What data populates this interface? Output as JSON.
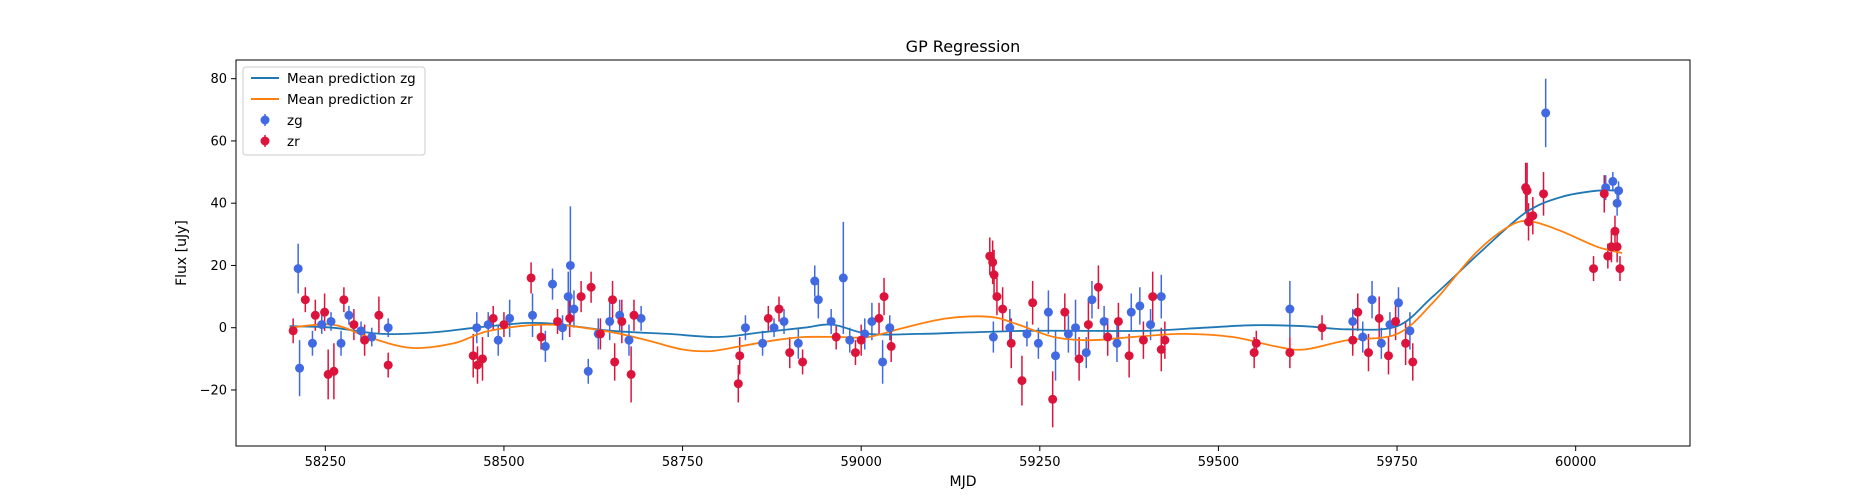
{
  "chart_data": {
    "type": "scatter",
    "title": "GP Regression",
    "xlabel": "MJD",
    "ylabel": "Flux [uJy]",
    "xlim": [
      58125,
      60160
    ],
    "ylim": [
      -38,
      86
    ],
    "x_ticks": [
      58250,
      58500,
      58750,
      59000,
      59250,
      59500,
      59750,
      60000
    ],
    "y_ticks": [
      -20,
      0,
      20,
      40,
      60,
      80
    ],
    "grid": false,
    "legend_position": "top-left",
    "lines": [
      {
        "name": "Mean prediction zg",
        "color": "#1f77b4",
        "x": [
          58200,
          58260,
          58330,
          58400,
          58460,
          58530,
          58580,
          58650,
          58730,
          58800,
          58860,
          58920,
          58960,
          59010,
          59080,
          59150,
          59230,
          59300,
          59400,
          59480,
          59550,
          59620,
          59680,
          59750,
          59800,
          59870,
          59930,
          59980,
          60030,
          60065
        ],
        "y": [
          0.5,
          0,
          -2,
          -1.5,
          0,
          1.5,
          1,
          -1,
          -2,
          -3,
          -1.5,
          0,
          1,
          -2,
          -2,
          -1.5,
          -1,
          -1,
          -1,
          0,
          0.8,
          0.5,
          -0.5,
          0.5,
          10,
          25,
          37,
          42,
          44,
          44
        ]
      },
      {
        "name": "Mean prediction zr",
        "color": "#ff7f0e",
        "x": [
          58200,
          58260,
          58310,
          58370,
          58430,
          58480,
          58560,
          58640,
          58700,
          58750,
          58790,
          58830,
          58880,
          58920,
          58970,
          59010,
          59060,
          59120,
          59180,
          59220,
          59270,
          59320,
          59380,
          59450,
          59520,
          59580,
          59620,
          59680,
          59750,
          59800,
          59860,
          59910,
          59940,
          59980,
          60030,
          60065
        ],
        "y": [
          0,
          1,
          -3,
          -6.5,
          -5,
          -1,
          1,
          -1,
          -4,
          -7,
          -7.5,
          -6,
          -4,
          -3,
          -3,
          -3,
          0,
          3,
          3.5,
          1,
          -3,
          -4,
          -3,
          -2,
          -3,
          -6,
          -7,
          -4,
          -2,
          8,
          24,
          33,
          34,
          31,
          26,
          24
        ]
      }
    ],
    "series": [
      {
        "name": "zg",
        "color": "#4169e1",
        "points": [
          [
            58212,
            19,
            8
          ],
          [
            58214,
            -13,
            9
          ],
          [
            58232,
            -5,
            4
          ],
          [
            58245,
            1,
            3
          ],
          [
            58258,
            2,
            3
          ],
          [
            58272,
            -5,
            4
          ],
          [
            58283,
            4,
            3
          ],
          [
            58300,
            -1,
            3
          ],
          [
            58315,
            -3,
            3
          ],
          [
            58338,
            0,
            3
          ],
          [
            58462,
            0,
            5
          ],
          [
            58478,
            1,
            4
          ],
          [
            58492,
            -4,
            5
          ],
          [
            58508,
            3,
            6
          ],
          [
            58540,
            4,
            7
          ],
          [
            58558,
            -6,
            5
          ],
          [
            58568,
            14,
            5
          ],
          [
            58582,
            0,
            4
          ],
          [
            58590,
            10,
            8
          ],
          [
            58593,
            20,
            19
          ],
          [
            58598,
            6,
            6
          ],
          [
            58618,
            -14,
            4
          ],
          [
            58632,
            -2,
            5
          ],
          [
            58648,
            2,
            6
          ],
          [
            58662,
            4,
            5
          ],
          [
            58675,
            -4,
            5
          ],
          [
            58692,
            3,
            4
          ],
          [
            58838,
            0,
            4
          ],
          [
            58862,
            -5,
            4
          ],
          [
            58878,
            0,
            3
          ],
          [
            58892,
            2,
            4
          ],
          [
            58912,
            -5,
            5
          ],
          [
            58935,
            15,
            5
          ],
          [
            58940,
            9,
            6
          ],
          [
            58958,
            2,
            4
          ],
          [
            58975,
            16,
            18
          ],
          [
            58984,
            -4,
            4
          ],
          [
            59005,
            -2,
            5
          ],
          [
            59015,
            2,
            6
          ],
          [
            59030,
            -11,
            7
          ],
          [
            59040,
            0,
            4
          ],
          [
            59185,
            -3,
            5
          ],
          [
            59208,
            0,
            6
          ],
          [
            59232,
            -2,
            4
          ],
          [
            59248,
            -5,
            5
          ],
          [
            59262,
            5,
            7
          ],
          [
            59272,
            -9,
            8
          ],
          [
            59290,
            -2,
            6
          ],
          [
            59300,
            0,
            9
          ],
          [
            59315,
            -8,
            5
          ],
          [
            59323,
            9,
            6
          ],
          [
            59340,
            2,
            5
          ],
          [
            59358,
            -5,
            6
          ],
          [
            59378,
            5,
            6
          ],
          [
            59390,
            7,
            6
          ],
          [
            59405,
            1,
            5
          ],
          [
            59420,
            10,
            7
          ],
          [
            59600,
            6,
            9
          ],
          [
            59688,
            2,
            4
          ],
          [
            59702,
            -3,
            5
          ],
          [
            59715,
            9,
            6
          ],
          [
            59728,
            -5,
            5
          ],
          [
            59740,
            1,
            4
          ],
          [
            59752,
            8,
            5
          ],
          [
            59768,
            -1,
            6
          ],
          [
            59958,
            69,
            11
          ],
          [
            60042,
            45,
            4
          ],
          [
            60052,
            47,
            3
          ],
          [
            60060,
            44,
            3
          ],
          [
            60058,
            40,
            4
          ]
        ]
      },
      {
        "name": "zr",
        "color": "#dc143c",
        "points": [
          [
            58205,
            -1,
            4
          ],
          [
            58222,
            9,
            4
          ],
          [
            58236,
            4,
            5
          ],
          [
            58249,
            5,
            6
          ],
          [
            58254,
            -15,
            8
          ],
          [
            58262,
            -14,
            9
          ],
          [
            58276,
            9,
            4
          ],
          [
            58290,
            1,
            5
          ],
          [
            58305,
            -4,
            5
          ],
          [
            58325,
            4,
            6
          ],
          [
            58338,
            -12,
            4
          ],
          [
            58457,
            -9,
            7
          ],
          [
            58463,
            -12,
            6
          ],
          [
            58470,
            -10,
            7
          ],
          [
            58485,
            3,
            4
          ],
          [
            58500,
            1,
            4
          ],
          [
            58538,
            16,
            5
          ],
          [
            58552,
            -3,
            4
          ],
          [
            58575,
            2,
            4
          ],
          [
            58592,
            3,
            6
          ],
          [
            58608,
            10,
            5
          ],
          [
            58622,
            13,
            5
          ],
          [
            58635,
            -2,
            5
          ],
          [
            58652,
            9,
            6
          ],
          [
            58655,
            -11,
            6
          ],
          [
            58665,
            2,
            7
          ],
          [
            58678,
            -15,
            9
          ],
          [
            58682,
            4,
            5
          ],
          [
            58828,
            -18,
            6
          ],
          [
            58830,
            -9,
            6
          ],
          [
            58870,
            3,
            4
          ],
          [
            58885,
            6,
            4
          ],
          [
            58900,
            -8,
            5
          ],
          [
            58918,
            -11,
            4
          ],
          [
            58965,
            -3,
            4
          ],
          [
            58992,
            -8,
            4
          ],
          [
            59000,
            -4,
            5
          ],
          [
            59025,
            3,
            5
          ],
          [
            59032,
            10,
            6
          ],
          [
            59042,
            -6,
            5
          ],
          [
            59180,
            23,
            6
          ],
          [
            59184,
            21,
            7
          ],
          [
            59186,
            17,
            8
          ],
          [
            59190,
            10,
            6
          ],
          [
            59198,
            6,
            7
          ],
          [
            59210,
            -5,
            8
          ],
          [
            59225,
            -17,
            8
          ],
          [
            59240,
            8,
            7
          ],
          [
            59268,
            -23,
            9
          ],
          [
            59285,
            5,
            6
          ],
          [
            59305,
            -10,
            7
          ],
          [
            59318,
            1,
            8
          ],
          [
            59332,
            13,
            7
          ],
          [
            59345,
            -3,
            6
          ],
          [
            59360,
            2,
            6
          ],
          [
            59375,
            -9,
            7
          ],
          [
            59395,
            -4,
            6
          ],
          [
            59408,
            10,
            8
          ],
          [
            59420,
            -7,
            7
          ],
          [
            59425,
            -4,
            6
          ],
          [
            59550,
            -8,
            5
          ],
          [
            59553,
            -5,
            4
          ],
          [
            59600,
            -8,
            5
          ],
          [
            59645,
            0,
            4
          ],
          [
            59688,
            -4,
            5
          ],
          [
            59695,
            5,
            6
          ],
          [
            59710,
            -8,
            6
          ],
          [
            59725,
            3,
            7
          ],
          [
            59738,
            -9,
            6
          ],
          [
            59748,
            2,
            6
          ],
          [
            59762,
            -5,
            7
          ],
          [
            59772,
            -11,
            6
          ],
          [
            59930,
            45,
            8
          ],
          [
            59932,
            44,
            9
          ],
          [
            59934,
            34,
            6
          ],
          [
            59940,
            36,
            6
          ],
          [
            59955,
            43,
            7
          ],
          [
            60025,
            19,
            4
          ],
          [
            60040,
            43,
            6
          ],
          [
            60045,
            23,
            4
          ],
          [
            60050,
            26,
            5
          ],
          [
            60055,
            31,
            5
          ],
          [
            60058,
            26,
            5
          ],
          [
            60062,
            19,
            4
          ]
        ]
      }
    ]
  }
}
